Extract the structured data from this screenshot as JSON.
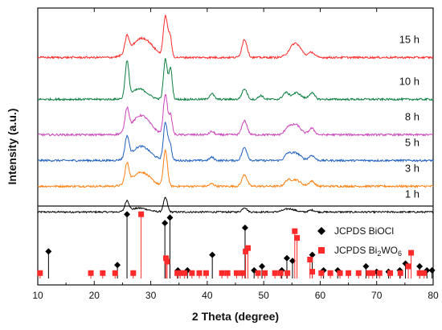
{
  "chart_data": {
    "type": "line",
    "xlabel": "2 Theta (degree)",
    "ylabel": "Intensity (a.u.)",
    "xlim": [
      10,
      80
    ],
    "xticks": [
      10,
      20,
      30,
      40,
      50,
      60,
      70,
      80
    ],
    "grid": false,
    "series": [
      {
        "name": "1 h",
        "color": "#000000",
        "offset": 0.0,
        "noise": 0.025,
        "peaks": [
          [
            25.8,
            0.16,
            0.35
          ],
          [
            32.6,
            0.22,
            0.35
          ],
          [
            28.0,
            0.06,
            1.5
          ],
          [
            46.6,
            0.07,
            0.4
          ],
          [
            54.5,
            0.05,
            1.0
          ],
          [
            58.5,
            0.03,
            0.5
          ]
        ]
      },
      {
        "name": "3 h",
        "color": "#ff7f0e",
        "offset": 0.4,
        "noise": 0.03,
        "peaks": [
          [
            25.8,
            0.3,
            0.35
          ],
          [
            32.6,
            0.55,
            0.35
          ],
          [
            28.3,
            0.22,
            1.6
          ],
          [
            46.6,
            0.18,
            0.45
          ],
          [
            55.6,
            0.1,
            0.9
          ],
          [
            54.2,
            0.07,
            0.5
          ],
          [
            58.5,
            0.08,
            0.5
          ],
          [
            40.8,
            0.04,
            0.4
          ]
        ]
      },
      {
        "name": "5 h",
        "color": "#1f5fbf",
        "offset": 0.8,
        "noise": 0.03,
        "peaks": [
          [
            25.8,
            0.32,
            0.35
          ],
          [
            32.6,
            0.58,
            0.35
          ],
          [
            33.4,
            0.25,
            0.3
          ],
          [
            28.3,
            0.22,
            1.6
          ],
          [
            46.6,
            0.2,
            0.45
          ],
          [
            55.6,
            0.12,
            0.9
          ],
          [
            54.2,
            0.08,
            0.5
          ],
          [
            58.5,
            0.08,
            0.5
          ],
          [
            40.8,
            0.05,
            0.4
          ]
        ]
      },
      {
        "name": "8 h",
        "color": "#cc44bb",
        "offset": 1.2,
        "noise": 0.03,
        "peaks": [
          [
            25.8,
            0.34,
            0.35
          ],
          [
            32.6,
            0.62,
            0.35
          ],
          [
            33.5,
            0.3,
            0.3
          ],
          [
            28.3,
            0.3,
            1.6
          ],
          [
            46.6,
            0.22,
            0.45
          ],
          [
            55.6,
            0.16,
            0.9
          ],
          [
            54.2,
            0.08,
            0.5
          ],
          [
            58.5,
            0.1,
            0.5
          ],
          [
            40.8,
            0.05,
            0.4
          ]
        ]
      },
      {
        "name": "10 h",
        "color": "#0a7f3f",
        "offset": 1.75,
        "noise": 0.03,
        "peaks": [
          [
            25.8,
            0.55,
            0.33
          ],
          [
            32.6,
            0.62,
            0.33
          ],
          [
            33.5,
            0.48,
            0.3
          ],
          [
            28.0,
            0.16,
            1.4
          ],
          [
            40.8,
            0.09,
            0.4
          ],
          [
            46.6,
            0.16,
            0.45
          ],
          [
            49.5,
            0.06,
            0.4
          ],
          [
            53.9,
            0.1,
            0.5
          ],
          [
            55.8,
            0.1,
            0.8
          ],
          [
            58.5,
            0.1,
            0.5
          ]
        ]
      },
      {
        "name": "15 h",
        "color": "#ff2a2a",
        "offset": 2.4,
        "noise": 0.03,
        "peaks": [
          [
            25.8,
            0.25,
            0.35
          ],
          [
            32.6,
            0.62,
            0.35
          ],
          [
            33.4,
            0.32,
            0.3
          ],
          [
            28.5,
            0.3,
            1.8
          ],
          [
            46.6,
            0.28,
            0.45
          ],
          [
            55.6,
            0.22,
            1.0
          ],
          [
            58.5,
            0.08,
            0.5
          ]
        ]
      }
    ],
    "references": [
      {
        "name": "JCPDS BiOCl",
        "marker": "diamond",
        "color": "#000000",
        "peaks": [
          [
            11.9,
            0.4
          ],
          [
            24.1,
            0.2
          ],
          [
            25.8,
            0.95
          ],
          [
            32.5,
            0.82
          ],
          [
            33.4,
            0.9
          ],
          [
            34.8,
            0.12
          ],
          [
            36.5,
            0.12
          ],
          [
            40.9,
            0.35
          ],
          [
            46.7,
            0.75
          ],
          [
            48.3,
            0.12
          ],
          [
            49.7,
            0.18
          ],
          [
            53.2,
            0.12
          ],
          [
            54.1,
            0.3
          ],
          [
            55.1,
            0.26
          ],
          [
            58.6,
            0.35
          ],
          [
            60.6,
            0.12
          ],
          [
            63.1,
            0.12
          ],
          [
            68.1,
            0.18
          ],
          [
            70.0,
            0.1
          ],
          [
            72.1,
            0.1
          ],
          [
            74.1,
            0.12
          ],
          [
            75.1,
            0.22
          ],
          [
            77.6,
            0.18
          ],
          [
            78.9,
            0.12
          ],
          [
            79.8,
            0.12
          ]
        ]
      },
      {
        "name": "JCPDS Bi2WO6",
        "marker": "square",
        "color": "#ff2a2a",
        "peaks": [
          [
            10.4,
            0.08
          ],
          [
            19.4,
            0.08
          ],
          [
            21.5,
            0.08
          ],
          [
            23.7,
            0.08
          ],
          [
            26.9,
            0.08
          ],
          [
            28.3,
            0.95
          ],
          [
            32.7,
            0.3
          ],
          [
            32.9,
            0.25
          ],
          [
            34.7,
            0.08
          ],
          [
            35.2,
            0.08
          ],
          [
            36.0,
            0.08
          ],
          [
            37.3,
            0.08
          ],
          [
            38.6,
            0.08
          ],
          [
            39.8,
            0.08
          ],
          [
            42.6,
            0.08
          ],
          [
            43.6,
            0.08
          ],
          [
            45.2,
            0.08
          ],
          [
            46.2,
            0.08
          ],
          [
            46.8,
            0.4
          ],
          [
            47.2,
            0.45
          ],
          [
            49.0,
            0.08
          ],
          [
            50.2,
            0.08
          ],
          [
            52.0,
            0.08
          ],
          [
            53.0,
            0.08
          ],
          [
            54.2,
            0.08
          ],
          [
            55.5,
            0.7
          ],
          [
            55.9,
            0.6
          ],
          [
            58.2,
            0.28
          ],
          [
            58.6,
            0.1
          ],
          [
            60.2,
            0.08
          ],
          [
            61.8,
            0.08
          ],
          [
            63.5,
            0.08
          ],
          [
            65.0,
            0.08
          ],
          [
            66.8,
            0.08
          ],
          [
            68.6,
            0.08
          ],
          [
            69.3,
            0.08
          ],
          [
            70.5,
            0.08
          ],
          [
            72.4,
            0.08
          ],
          [
            74.2,
            0.08
          ],
          [
            75.6,
            0.18
          ],
          [
            76.1,
            0.38
          ],
          [
            77.6,
            0.08
          ],
          [
            78.4,
            0.08
          ]
        ]
      }
    ],
    "legend": {
      "placement": "right",
      "entries": [
        {
          "marker": "diamond",
          "color": "#000000",
          "prefix": "JCPDS BiOCl",
          "sub": "",
          "suffix": ""
        },
        {
          "marker": "square",
          "color": "#ff2a2a",
          "prefix": "JCPDS Bi",
          "sub": "2",
          "suffix": "WO",
          "sub2": "6"
        }
      ]
    }
  }
}
